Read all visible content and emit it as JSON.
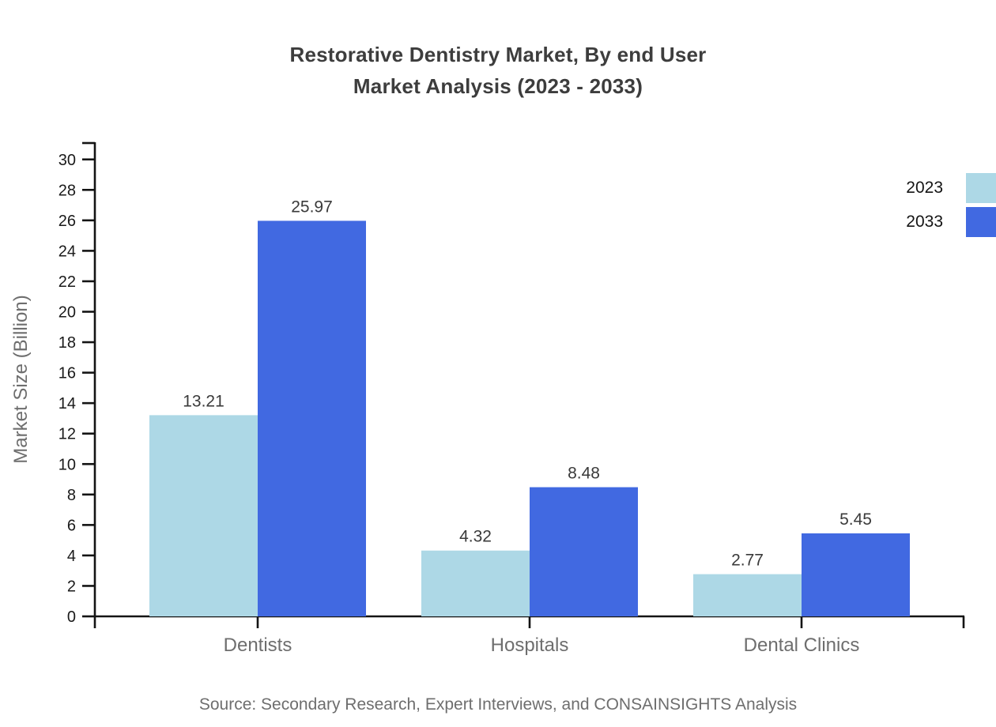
{
  "chart": {
    "title_line1": "Restorative Dentistry Market, By end User",
    "title_line2": "Market Analysis (2023 - 2033)",
    "source": "Source: Secondary Research, Expert Interviews, and CONSAINSIGHTS Analysis"
  },
  "chart_data": {
    "type": "bar",
    "title": "Restorative Dentistry Market, By end User Market Analysis (2023 - 2033)",
    "categories": [
      "Dentists",
      "Hospitals",
      "Dental Clinics"
    ],
    "series": [
      {
        "name": "2023",
        "color": "#ADD8E6",
        "values": [
          13.21,
          4.32,
          2.77
        ]
      },
      {
        "name": "2033",
        "color": "#4169E1",
        "values": [
          25.97,
          8.48,
          5.45
        ]
      }
    ],
    "value_labels": [
      "13.21",
      "25.97",
      "4.32",
      "8.48",
      "2.77",
      "5.45"
    ],
    "xlabel": "",
    "ylabel": "Market Size (Billion)",
    "ylim": [
      0,
      30
    ],
    "ytick_step": 2,
    "yticks": [
      0,
      2,
      4,
      6,
      8,
      10,
      12,
      14,
      16,
      18,
      20,
      22,
      24,
      26,
      28,
      30
    ],
    "grid": false,
    "legend_position": "top-right",
    "colors": {
      "title_text": "#3d3d3d",
      "axis_line": "#141414",
      "tick_label_text": "#1a1a1a",
      "category_label_text": "#6e6e6e",
      "value_label_text": "#3a3a3a",
      "source_text": "#6e6e6e"
    }
  }
}
